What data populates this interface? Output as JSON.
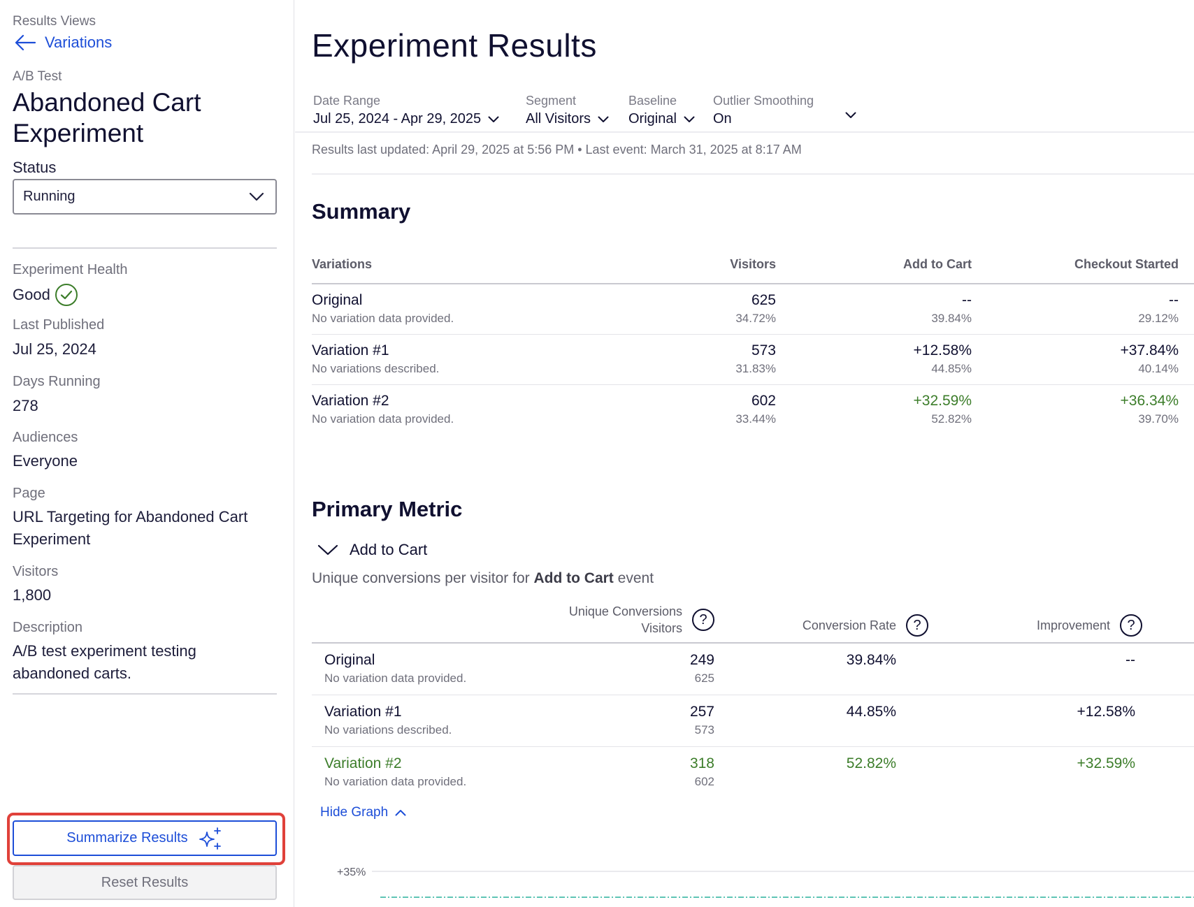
{
  "sidebar": {
    "results_views_label": "Results Views",
    "back_link_label": "Variations",
    "experiment_type": "A/B Test",
    "experiment_title": "Abandoned Cart Experiment",
    "status_label": "Status",
    "status_value": "Running",
    "meta": [
      {
        "label": "Experiment Health",
        "value": "Good"
      },
      {
        "label": "Last Published",
        "value": "Jul 25, 2024"
      },
      {
        "label": "Days Running",
        "value": "278"
      },
      {
        "label": "Audiences",
        "value": "Everyone"
      },
      {
        "label": "Page",
        "value": "URL Targeting for Abandoned Cart Experiment"
      },
      {
        "label": "Visitors",
        "value": "1,800"
      },
      {
        "label": "Description",
        "value": "A/B test experiment testing abandoned carts."
      }
    ],
    "summarize_button": "Summarize Results",
    "reset_button": "Reset Results"
  },
  "main": {
    "page_title": "Experiment Results",
    "filters": [
      {
        "label": "Date Range",
        "value": "Jul 25, 2024 - Apr 29, 2025"
      },
      {
        "label": "Segment",
        "value": "All Visitors"
      },
      {
        "label": "Baseline",
        "value": "Original"
      },
      {
        "label": "Outlier Smoothing",
        "value": "On"
      }
    ],
    "updated_text": "Results last updated: April 29, 2025 at 5:56 PM • Last event: March 31, 2025 at 8:17 AM",
    "summary": {
      "title": "Summary",
      "headers": [
        "Variations",
        "Visitors",
        "Add to Cart",
        "Checkout Started"
      ],
      "rows": [
        {
          "name": "Original",
          "desc": "No variation data provided.",
          "visitors": "625",
          "visitors_pct": "34.72%",
          "atc": "--",
          "atc_rate": "39.84%",
          "checkout": "--",
          "checkout_rate": "29.12%"
        },
        {
          "name": "Variation #1",
          "desc": "No variations described.",
          "visitors": "573",
          "visitors_pct": "31.83%",
          "atc": "+12.58%",
          "atc_rate": "44.85%",
          "checkout": "+37.84%",
          "checkout_rate": "40.14%"
        },
        {
          "name": "Variation #2",
          "desc": "No variation data provided.",
          "visitors": "602",
          "visitors_pct": "33.44%",
          "atc": "+32.59%",
          "atc_rate": "52.82%",
          "checkout": "+36.34%",
          "checkout_rate": "39.70%"
        }
      ]
    },
    "primary_metric": {
      "title": "Primary Metric",
      "metric_name": "Add to Cart",
      "desc_prefix": "Unique conversions per visitor for",
      "desc_metric": "Add to Cart",
      "desc_suffix": "event",
      "headers": {
        "uc_line1": "Unique Conversions",
        "uc_line2": "Visitors",
        "rate": "Conversion Rate",
        "improvement": "Improvement"
      },
      "rows": [
        {
          "name": "Original",
          "desc": "No variation data provided.",
          "conversions": "249",
          "visitors": "625",
          "rate": "39.84%",
          "improvement": "--"
        },
        {
          "name": "Variation #1",
          "desc": "No variations described.",
          "conversions": "257",
          "visitors": "573",
          "rate": "44.85%",
          "improvement": "+12.58%"
        },
        {
          "name": "Variation #2",
          "desc": "No variation data provided.",
          "conversions": "318",
          "visitors": "602",
          "rate": "52.82%",
          "improvement": "+32.59%"
        }
      ],
      "hide_graph_label": "Hide Graph",
      "graph_tick_label": "+35%"
    }
  },
  "colors": {
    "accent": "#1d4ed8",
    "positive": "#3c7d2a",
    "highlight": "#e0413a",
    "chart_line": "#5fc4b4"
  }
}
